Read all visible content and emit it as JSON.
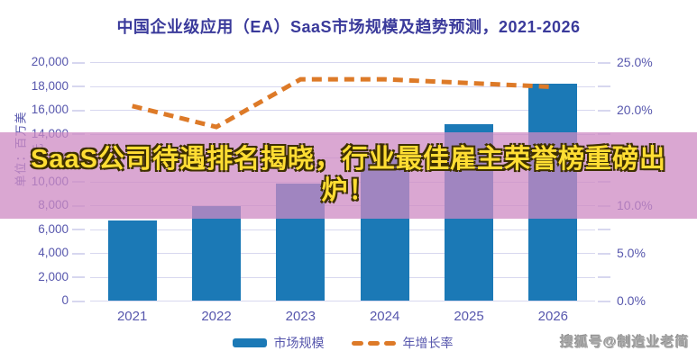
{
  "title": "中国企业级应用（EA）SaaS市场规模及趋势预测，2021-2026",
  "overlay": {
    "headline": "SaaS公司待遇排名揭晓，行业最佳雇主荣誉榜重磅出炉！"
  },
  "watermark": "搜狐号@制造业老简",
  "colors": {
    "title_text": "#3a3a9b",
    "axis_text": "#5757ad",
    "grid": "#d7d7ef",
    "bar": "#1b79b6",
    "line": "#dd7a28",
    "banner": "rgba(205,138,195,0.75)",
    "headline_text": "#ffdd33",
    "headline_outline": "#3d2f00",
    "watermark_text": "#a8a8a8"
  },
  "chart_data": {
    "type": "bar",
    "categories": [
      "2021",
      "2022",
      "2023",
      "2024",
      "2025",
      "2026"
    ],
    "series": [
      {
        "name": "市场规模",
        "type": "bar",
        "axis": "left",
        "values": [
          6700,
          7950,
          9800,
          12100,
          14800,
          18200
        ]
      },
      {
        "name": "年增长率",
        "type": "line",
        "style": "dashed",
        "axis": "right",
        "values": [
          20.4,
          18.2,
          23.2,
          23.2,
          22.8,
          22.4
        ]
      }
    ],
    "left_axis": {
      "title": "单位：百万美元",
      "min": 0,
      "max": 20000,
      "step": 2000,
      "tick_labels": [
        "20,000",
        "18,000",
        "16,000",
        "14,000",
        "12,000",
        "10,000",
        "8,000",
        "6,000",
        "4,000",
        "2,000",
        "0"
      ]
    },
    "right_axis": {
      "min": 0,
      "max": 25,
      "label_step": 5,
      "tick_labels": [
        "25.0%",
        "20.0%",
        "15.0%",
        "10.0%",
        "5.0%",
        "0.0%"
      ]
    },
    "grid": true,
    "legend_position": "bottom"
  }
}
